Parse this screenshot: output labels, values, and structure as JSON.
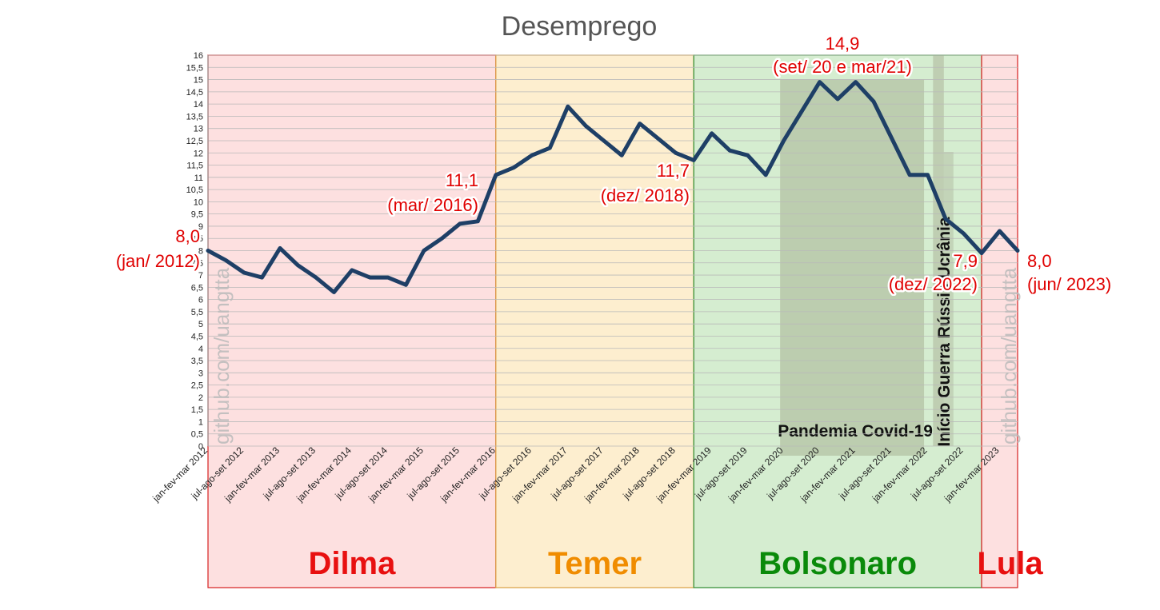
{
  "chart_data": {
    "type": "line",
    "title": "Desemprego",
    "xlabel": "",
    "ylabel": "",
    "ylim": [
      0,
      16
    ],
    "ytick_step": 0.5,
    "grid": true,
    "x": [
      "jan-fev-mar 2012",
      "abr-mai-jun 2012",
      "jul-ago-set 2012",
      "out-nov-dez 2012",
      "jan-fev-mar 2013",
      "abr-mai-jun 2013",
      "jul-ago-set 2013",
      "out-nov-dez 2013",
      "jan-fev-mar 2014",
      "abr-mai-jun 2014",
      "jul-ago-set 2014",
      "out-nov-dez 2014",
      "jan-fev-mar 2015",
      "abr-mai-jun 2015",
      "jul-ago-set 2015",
      "out-nov-dez 2015",
      "jan-fev-mar 2016",
      "abr-mai-jun 2016",
      "jul-ago-set 2016",
      "out-nov-dez 2016",
      "jan-fev-mar 2017",
      "abr-mai-jun 2017",
      "jul-ago-set 2017",
      "out-nov-dez 2017",
      "jan-fev-mar 2018",
      "abr-mai-jun 2018",
      "jul-ago-set 2018",
      "out-nov-dez 2018",
      "jan-fev-mar 2019",
      "abr-mai-jun 2019",
      "jul-ago-set 2019",
      "out-nov-dez 2019",
      "jan-fev-mar 2020",
      "abr-mai-jun 2020",
      "jul-ago-set 2020",
      "out-nov-dez 2020",
      "jan-fev-mar 2021",
      "abr-mai-jun 2021",
      "jul-ago-set 2021",
      "out-nov-dez 2021",
      "jan-fev-mar 2022",
      "abr-mai-jun 2022",
      "jul-ago-set 2022",
      "out-nov-dez 2022",
      "jan-fev-mar 2023",
      "abr-mai-jun 2023"
    ],
    "x_tick_labels": [
      "jan-fev-mar 2012",
      "jul-ago-set 2012",
      "jan-fev-mar 2013",
      "jul-ago-set 2013",
      "jan-fev-mar 2014",
      "jul-ago-set 2014",
      "jan-fev-mar 2015",
      "jul-ago-set 2015",
      "jan-fev-mar 2016",
      "jul-ago-set 2016",
      "jan-fev-mar 2017",
      "jul-ago-set 2017",
      "jan-fev-mar 2018",
      "jul-ago-set 2018",
      "jan-fev-mar 2019",
      "jul-ago-set 2019",
      "jan-fev-mar 2020",
      "jul-ago-set 2020",
      "jan-fev-mar 2021",
      "jul-ago-set 2021",
      "jan-fev-mar 2022",
      "jul-ago-set 2022",
      "jan-fev-mar 2023"
    ],
    "series": [
      {
        "color": "#1e3f66",
        "values": [
          8.0,
          7.6,
          7.1,
          6.9,
          8.1,
          7.4,
          6.9,
          6.3,
          7.2,
          6.9,
          6.9,
          6.6,
          8.0,
          8.5,
          9.1,
          9.2,
          11.1,
          11.4,
          11.9,
          12.2,
          13.9,
          13.1,
          12.5,
          11.9,
          13.2,
          12.6,
          12.0,
          11.7,
          12.8,
          12.1,
          11.9,
          11.1,
          12.5,
          13.7,
          14.9,
          14.2,
          14.9,
          14.1,
          12.6,
          11.1,
          11.1,
          9.3,
          8.7,
          7.9,
          8.8,
          8.0
        ]
      }
    ],
    "governments": [
      {
        "name": "Dilma",
        "from": 0,
        "to": 16,
        "fill": "#fde0e0",
        "border": "#d61e1e",
        "text_color": "#e81010"
      },
      {
        "name": "Temer",
        "from": 16,
        "to": 27,
        "fill": "#fdeecf",
        "border": "#d9a040",
        "text_color": "#f08c00"
      },
      {
        "name": "Bolsonaro",
        "from": 27,
        "to": 43,
        "fill": "#d5edd0",
        "border": "#2d8a2d",
        "text_color": "#0a8a0a"
      },
      {
        "name": "Lula",
        "from": 43,
        "to": 45,
        "fill": "#fde0e0",
        "border": "#d61e1e",
        "text_color": "#e81010"
      }
    ],
    "events": [
      {
        "label": "Pandemia Covid-19",
        "from": 31.8,
        "to": 39.8
      },
      {
        "label": "Início Guerra Rússia Ucrânia",
        "from": 40.3,
        "to": 40.9
      }
    ],
    "annotations": [
      {
        "index": 0,
        "value": "8,0",
        "date": "(jan/ 2012)"
      },
      {
        "index": 16,
        "value": "11,1",
        "date": "(mar/ 2016)"
      },
      {
        "index": 27,
        "value": "11,7",
        "date": "(dez/ 2018)"
      },
      {
        "index": 34,
        "value": "14,9",
        "date": "(set/ 20 e mar/21)"
      },
      {
        "index": 43,
        "value": "7,9",
        "date": "(dez/ 2022)"
      },
      {
        "index": 45,
        "value": "8,0",
        "date": "(jun/ 2023)"
      }
    ]
  },
  "watermark": "github.com/uangtta"
}
